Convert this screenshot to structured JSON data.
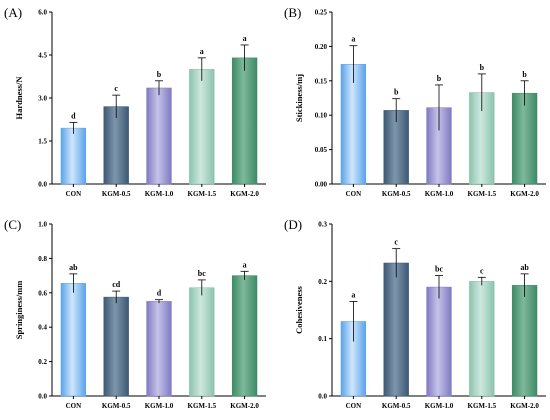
{
  "chart_data": [
    {
      "type": "bar",
      "panel": "(A)",
      "ylabel": "Hardness/N",
      "categories": [
        "CON",
        "KGM-0.5",
        "KGM-1.0",
        "KGM-1.5",
        "KGM-2.0"
      ],
      "values": [
        1.95,
        2.7,
        3.35,
        4.0,
        4.4
      ],
      "errors": [
        0.2,
        0.4,
        0.25,
        0.4,
        0.45
      ],
      "letters": [
        "d",
        "c",
        "b",
        "a",
        "a"
      ],
      "ylim": [
        0,
        6.0
      ],
      "yticks": [
        "0.0",
        "1.5",
        "3.0",
        "4.5",
        "6.0"
      ]
    },
    {
      "type": "bar",
      "panel": "(B)",
      "ylabel": "Stickiness/mj",
      "categories": [
        "CON",
        "KGM-0.5",
        "KGM-1.0",
        "KGM-1.5",
        "KGM-2.0"
      ],
      "values": [
        0.174,
        0.107,
        0.111,
        0.133,
        0.132
      ],
      "errors": [
        0.027,
        0.017,
        0.033,
        0.027,
        0.018
      ],
      "letters": [
        "a",
        "b",
        "b",
        "b",
        "b"
      ],
      "ylim": [
        0,
        0.25
      ],
      "yticks": [
        "0.00",
        "0.05",
        "0.10",
        "0.15",
        "0.20",
        "0.25"
      ]
    },
    {
      "type": "bar",
      "panel": "(C)",
      "ylabel": "Springiness/mm",
      "categories": [
        "CON",
        "KGM-0.5",
        "KGM-1.0",
        "KGM-1.5",
        "KGM-2.0"
      ],
      "values": [
        0.655,
        0.575,
        0.55,
        0.63,
        0.7
      ],
      "errors": [
        0.055,
        0.035,
        0.01,
        0.045,
        0.025
      ],
      "letters": [
        "ab",
        "cd",
        "d",
        "bc",
        "a"
      ],
      "ylim": [
        0,
        1.0
      ],
      "yticks": [
        "0.0",
        "0.2",
        "0.4",
        "0.6",
        "0.8",
        "1.0"
      ]
    },
    {
      "type": "bar",
      "panel": "(D)",
      "ylabel": "Cohesiveness",
      "categories": [
        "CON",
        "KGM-0.5",
        "KGM-1.0",
        "KGM-1.5",
        "KGM-2.0"
      ],
      "values": [
        0.13,
        0.232,
        0.19,
        0.2,
        0.193
      ],
      "errors": [
        0.035,
        0.025,
        0.02,
        0.007,
        0.02
      ],
      "letters": [
        "a",
        "c",
        "bc",
        "c",
        "ab"
      ],
      "ylim": [
        0,
        0.3
      ],
      "yticks": [
        "0.0",
        "0.1",
        "0.2",
        "0.3"
      ]
    }
  ],
  "colors": {
    "bars": [
      [
        "#cfe6fb",
        "#5aa3ea"
      ],
      [
        "#7f97ad",
        "#3d5873"
      ],
      [
        "#c6c3e8",
        "#7f79c3"
      ],
      [
        "#cde8df",
        "#8cc3ad"
      ],
      [
        "#7fb99c",
        "#3d8a66"
      ]
    ],
    "axis": "#000000"
  }
}
